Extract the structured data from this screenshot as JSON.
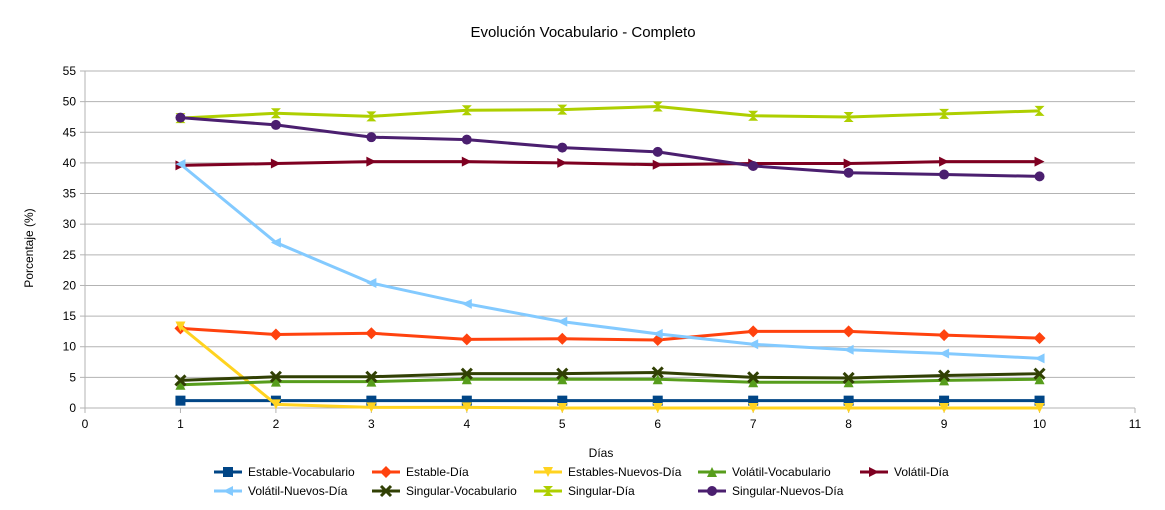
{
  "chart_data": {
    "type": "line",
    "title": "Evolución Vocabulario - Completo",
    "xlabel": "Días",
    "ylabel": "Porcentaje (%)",
    "xlim": [
      0,
      11
    ],
    "ylim": [
      0,
      55
    ],
    "xticks": [
      0,
      1,
      2,
      3,
      4,
      5,
      6,
      7,
      8,
      9,
      10,
      11
    ],
    "yticks": [
      0,
      5,
      10,
      15,
      20,
      25,
      30,
      35,
      40,
      45,
      50,
      55
    ],
    "grid": "horizontal",
    "legend_position": "bottom",
    "x": [
      1,
      2,
      3,
      4,
      5,
      6,
      7,
      8,
      9,
      10
    ],
    "series": [
      {
        "name": "Estable-Vocabulario",
        "color": "#004586",
        "marker": "square",
        "values": [
          1.2,
          1.2,
          1.2,
          1.2,
          1.2,
          1.2,
          1.2,
          1.2,
          1.2,
          1.2
        ]
      },
      {
        "name": "Estable-Día",
        "color": "#ff420e",
        "marker": "diamond",
        "values": [
          13.0,
          12.0,
          12.2,
          11.2,
          11.3,
          11.1,
          12.5,
          12.5,
          11.9,
          11.4
        ]
      },
      {
        "name": "Estables-Nuevos-Día",
        "color": "#ffd320",
        "marker": "triangle-down",
        "values": [
          13.3,
          0.6,
          0.1,
          0.1,
          0.0,
          0.0,
          0.0,
          0.0,
          0.0,
          0.0
        ]
      },
      {
        "name": "Volátil-Vocabulario",
        "color": "#579d1c",
        "marker": "triangle-up",
        "values": [
          3.8,
          4.3,
          4.3,
          4.7,
          4.7,
          4.7,
          4.2,
          4.2,
          4.5,
          4.7
        ]
      },
      {
        "name": "Volátil-Día",
        "color": "#7e0021",
        "marker": "triangle-right",
        "values": [
          39.6,
          39.9,
          40.2,
          40.2,
          40.0,
          39.7,
          39.9,
          39.9,
          40.2,
          40.2
        ]
      },
      {
        "name": "Volátil-Nuevos-Día",
        "color": "#83caff",
        "marker": "triangle-left",
        "values": [
          39.8,
          27.0,
          20.4,
          17.0,
          14.1,
          12.1,
          10.4,
          9.5,
          8.9,
          8.1
        ]
      },
      {
        "name": "Singular-Vocabulario",
        "color": "#314004",
        "marker": "x",
        "values": [
          4.5,
          5.1,
          5.1,
          5.6,
          5.6,
          5.8,
          5.0,
          4.9,
          5.3,
          5.6
        ]
      },
      {
        "name": "Singular-Día",
        "color": "#aecf00",
        "marker": "hourglass",
        "values": [
          47.3,
          48.1,
          47.6,
          48.6,
          48.7,
          49.2,
          47.7,
          47.5,
          48.0,
          48.5
        ]
      },
      {
        "name": "Singular-Nuevos-Día",
        "color": "#4b1f6f",
        "marker": "circle",
        "values": [
          47.4,
          46.2,
          44.2,
          43.8,
          42.5,
          41.8,
          39.5,
          38.4,
          38.1,
          37.8
        ]
      }
    ]
  }
}
